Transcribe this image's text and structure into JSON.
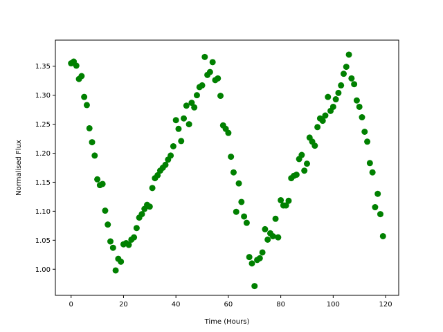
{
  "chart_data": {
    "type": "scatter",
    "title": "",
    "xlabel": "Time (Hours)",
    "ylabel": "Normalised Flux",
    "xlim": [
      -6,
      125
    ],
    "ylim": [
      0.955,
      1.395
    ],
    "xticks": [
      0,
      20,
      40,
      60,
      80,
      100,
      120
    ],
    "yticks": [
      1.0,
      1.05,
      1.1,
      1.15,
      1.2,
      1.25,
      1.3,
      1.35
    ],
    "ytick_labels": [
      "1.00",
      "1.05",
      "1.10",
      "1.15",
      "1.20",
      "1.25",
      "1.30",
      "1.35"
    ],
    "grid": false,
    "marker_color": "#008000",
    "series": [
      {
        "x": [
          0,
          1,
          2,
          3,
          4,
          5,
          6,
          7,
          8,
          9,
          10,
          11,
          12,
          13,
          14,
          15,
          16,
          17,
          18,
          19,
          20,
          21,
          22,
          23,
          24,
          25,
          26,
          27,
          28,
          29,
          30,
          31,
          32,
          33,
          34,
          35,
          36,
          37,
          38,
          39,
          40,
          41,
          42,
          43,
          44,
          45,
          46,
          47,
          48,
          49,
          50,
          51,
          52,
          53,
          54,
          55,
          56,
          57,
          58,
          59,
          60,
          61,
          62,
          63,
          64,
          65,
          66,
          67,
          68,
          69,
          70,
          71,
          72,
          73,
          74,
          75,
          76,
          77,
          78,
          79,
          80,
          81,
          82,
          83,
          84,
          85,
          86,
          87,
          88,
          89,
          90,
          91,
          92,
          93,
          94,
          95,
          96,
          97,
          98,
          99,
          100,
          101,
          102,
          103,
          104,
          105,
          106,
          107,
          108,
          109,
          110,
          111,
          112,
          113,
          114,
          115,
          116,
          117,
          118,
          119
        ],
        "y": [
          1.355,
          1.358,
          1.351,
          1.328,
          1.333,
          1.297,
          1.283,
          1.243,
          1.219,
          1.196,
          1.155,
          1.145,
          1.147,
          1.101,
          1.077,
          1.048,
          1.037,
          0.998,
          1.018,
          1.013,
          1.043,
          1.045,
          1.042,
          1.051,
          1.055,
          1.071,
          1.089,
          1.095,
          1.104,
          1.111,
          1.108,
          1.14,
          1.157,
          1.162,
          1.17,
          1.175,
          1.18,
          1.189,
          1.196,
          1.212,
          1.257,
          1.242,
          1.221,
          1.26,
          1.282,
          1.25,
          1.287,
          1.279,
          1.3,
          1.314,
          1.317,
          1.366,
          1.335,
          1.34,
          1.357,
          1.326,
          1.329,
          1.299,
          1.248,
          1.242,
          1.235,
          1.194,
          1.167,
          1.099,
          1.148,
          1.116,
          1.091,
          1.08,
          1.021,
          1.01,
          0.971,
          1.016,
          1.019,
          1.029,
          1.069,
          1.051,
          1.062,
          1.057,
          1.087,
          1.055,
          1.119,
          1.11,
          1.11,
          1.118,
          1.157,
          1.161,
          1.163,
          1.19,
          1.197,
          1.17,
          1.182,
          1.227,
          1.22,
          1.213,
          1.245,
          1.26,
          1.256,
          1.265,
          1.297,
          1.273,
          1.28,
          1.293,
          1.304,
          1.317,
          1.337,
          1.349,
          1.37,
          1.329,
          1.319,
          1.291,
          1.28,
          1.262,
          1.237,
          1.22,
          1.183,
          1.167,
          1.107,
          1.13,
          1.095,
          1.057
        ]
      }
    ]
  }
}
